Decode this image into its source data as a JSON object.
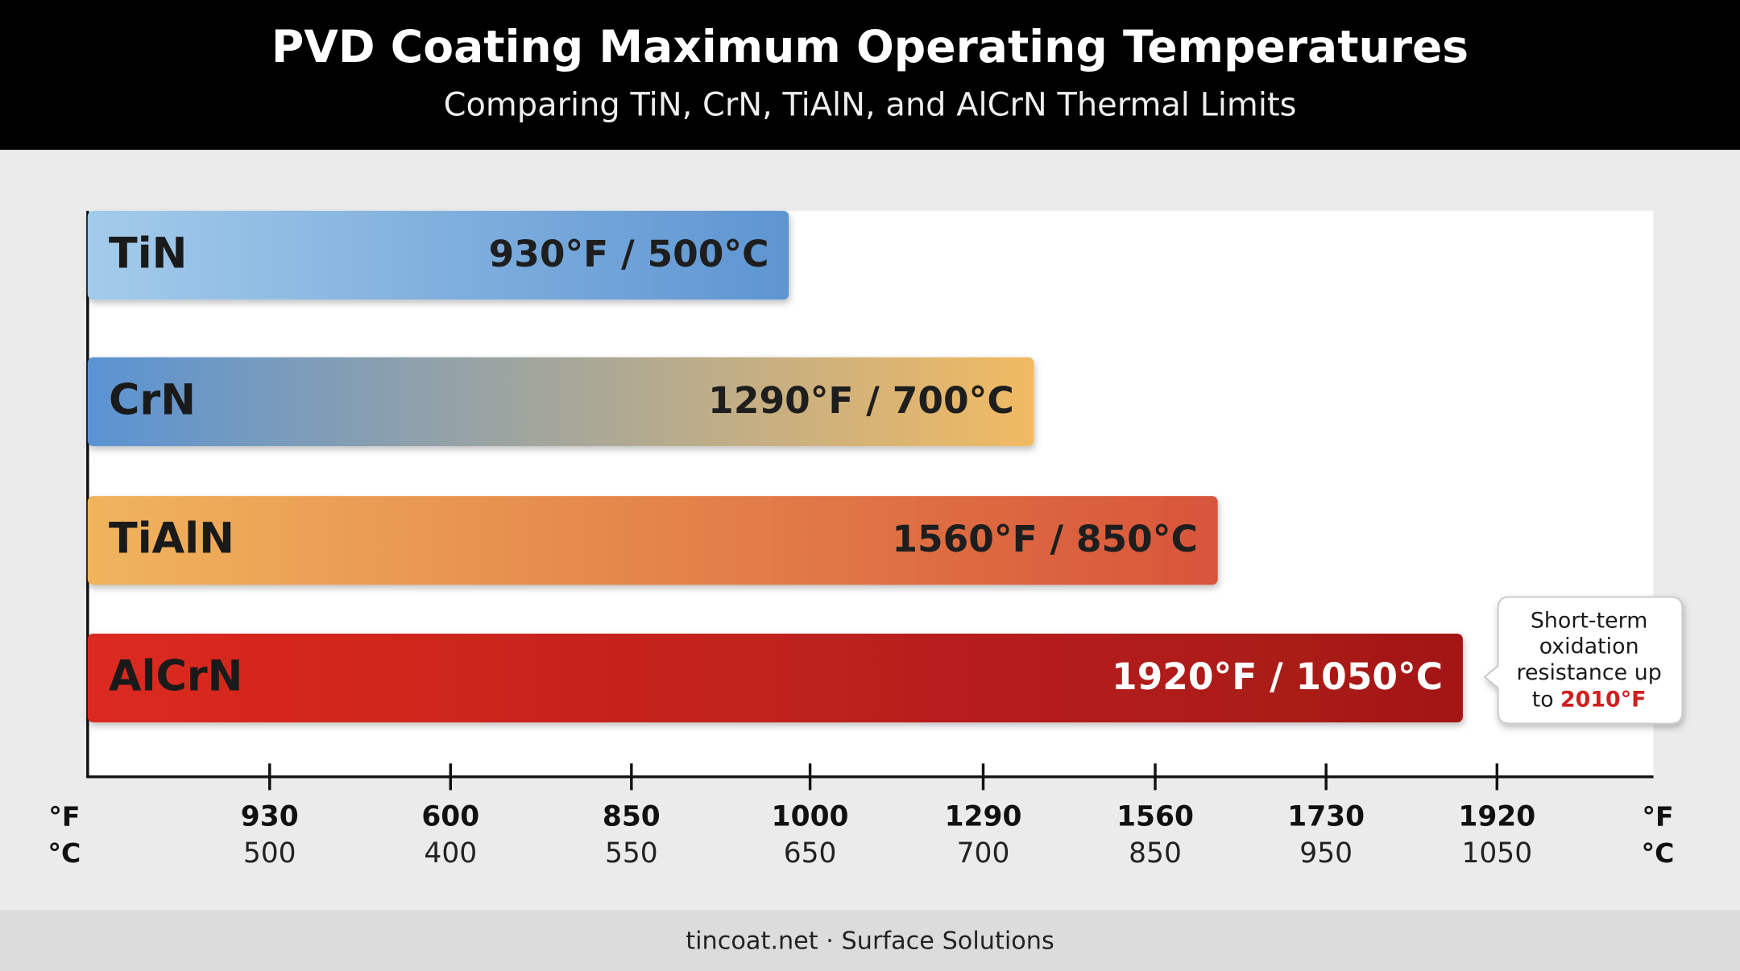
{
  "chart_data": {
    "type": "bar",
    "orientation": "horizontal",
    "title": "PVD Coating Maximum Operating Temperatures",
    "subtitle": "Comparing TiN, CrN, TiAlN, and AlCrN Thermal Limits",
    "categories": [
      "TiN",
      "CrN",
      "TiAlN",
      "AlCrN"
    ],
    "values": [
      930,
      1290,
      1560,
      1920
    ],
    "value_labels": [
      "930°F / 500°C",
      "1290°F / 700°C",
      "1560°F / 850°C",
      "1920°F / 1050°C"
    ],
    "gradients": [
      [
        "#a3cbea",
        "#5e95d2"
      ],
      [
        "#5a93d3",
        "#f1ba62"
      ],
      [
        "#f0b45c",
        "#d8553a"
      ],
      [
        "#dc2a20",
        "#a31818"
      ]
    ],
    "value_label_colors": [
      "#1e1e1e",
      "#1e1e1e",
      "#1e1e1e",
      "#ffffff"
    ],
    "xlim": [
      -100,
      2200
    ],
    "scale_labels": {
      "f": [
        "930",
        "600",
        "850",
        "1000",
        "1290",
        "1560",
        "1730",
        "1920"
      ],
      "c": [
        "500",
        "400",
        "550",
        "650",
        "700",
        "850",
        "950",
        "1050"
      ]
    },
    "units": {
      "f": "°F",
      "c": "°C"
    },
    "annotation": {
      "lines": [
        "Short-term",
        "oxidation",
        "resistance up"
      ],
      "prefix": "to",
      "highlight": "2010°F",
      "highlight_color": "#d01f1f"
    },
    "footer": "tincoat.net · Surface Solutions"
  }
}
